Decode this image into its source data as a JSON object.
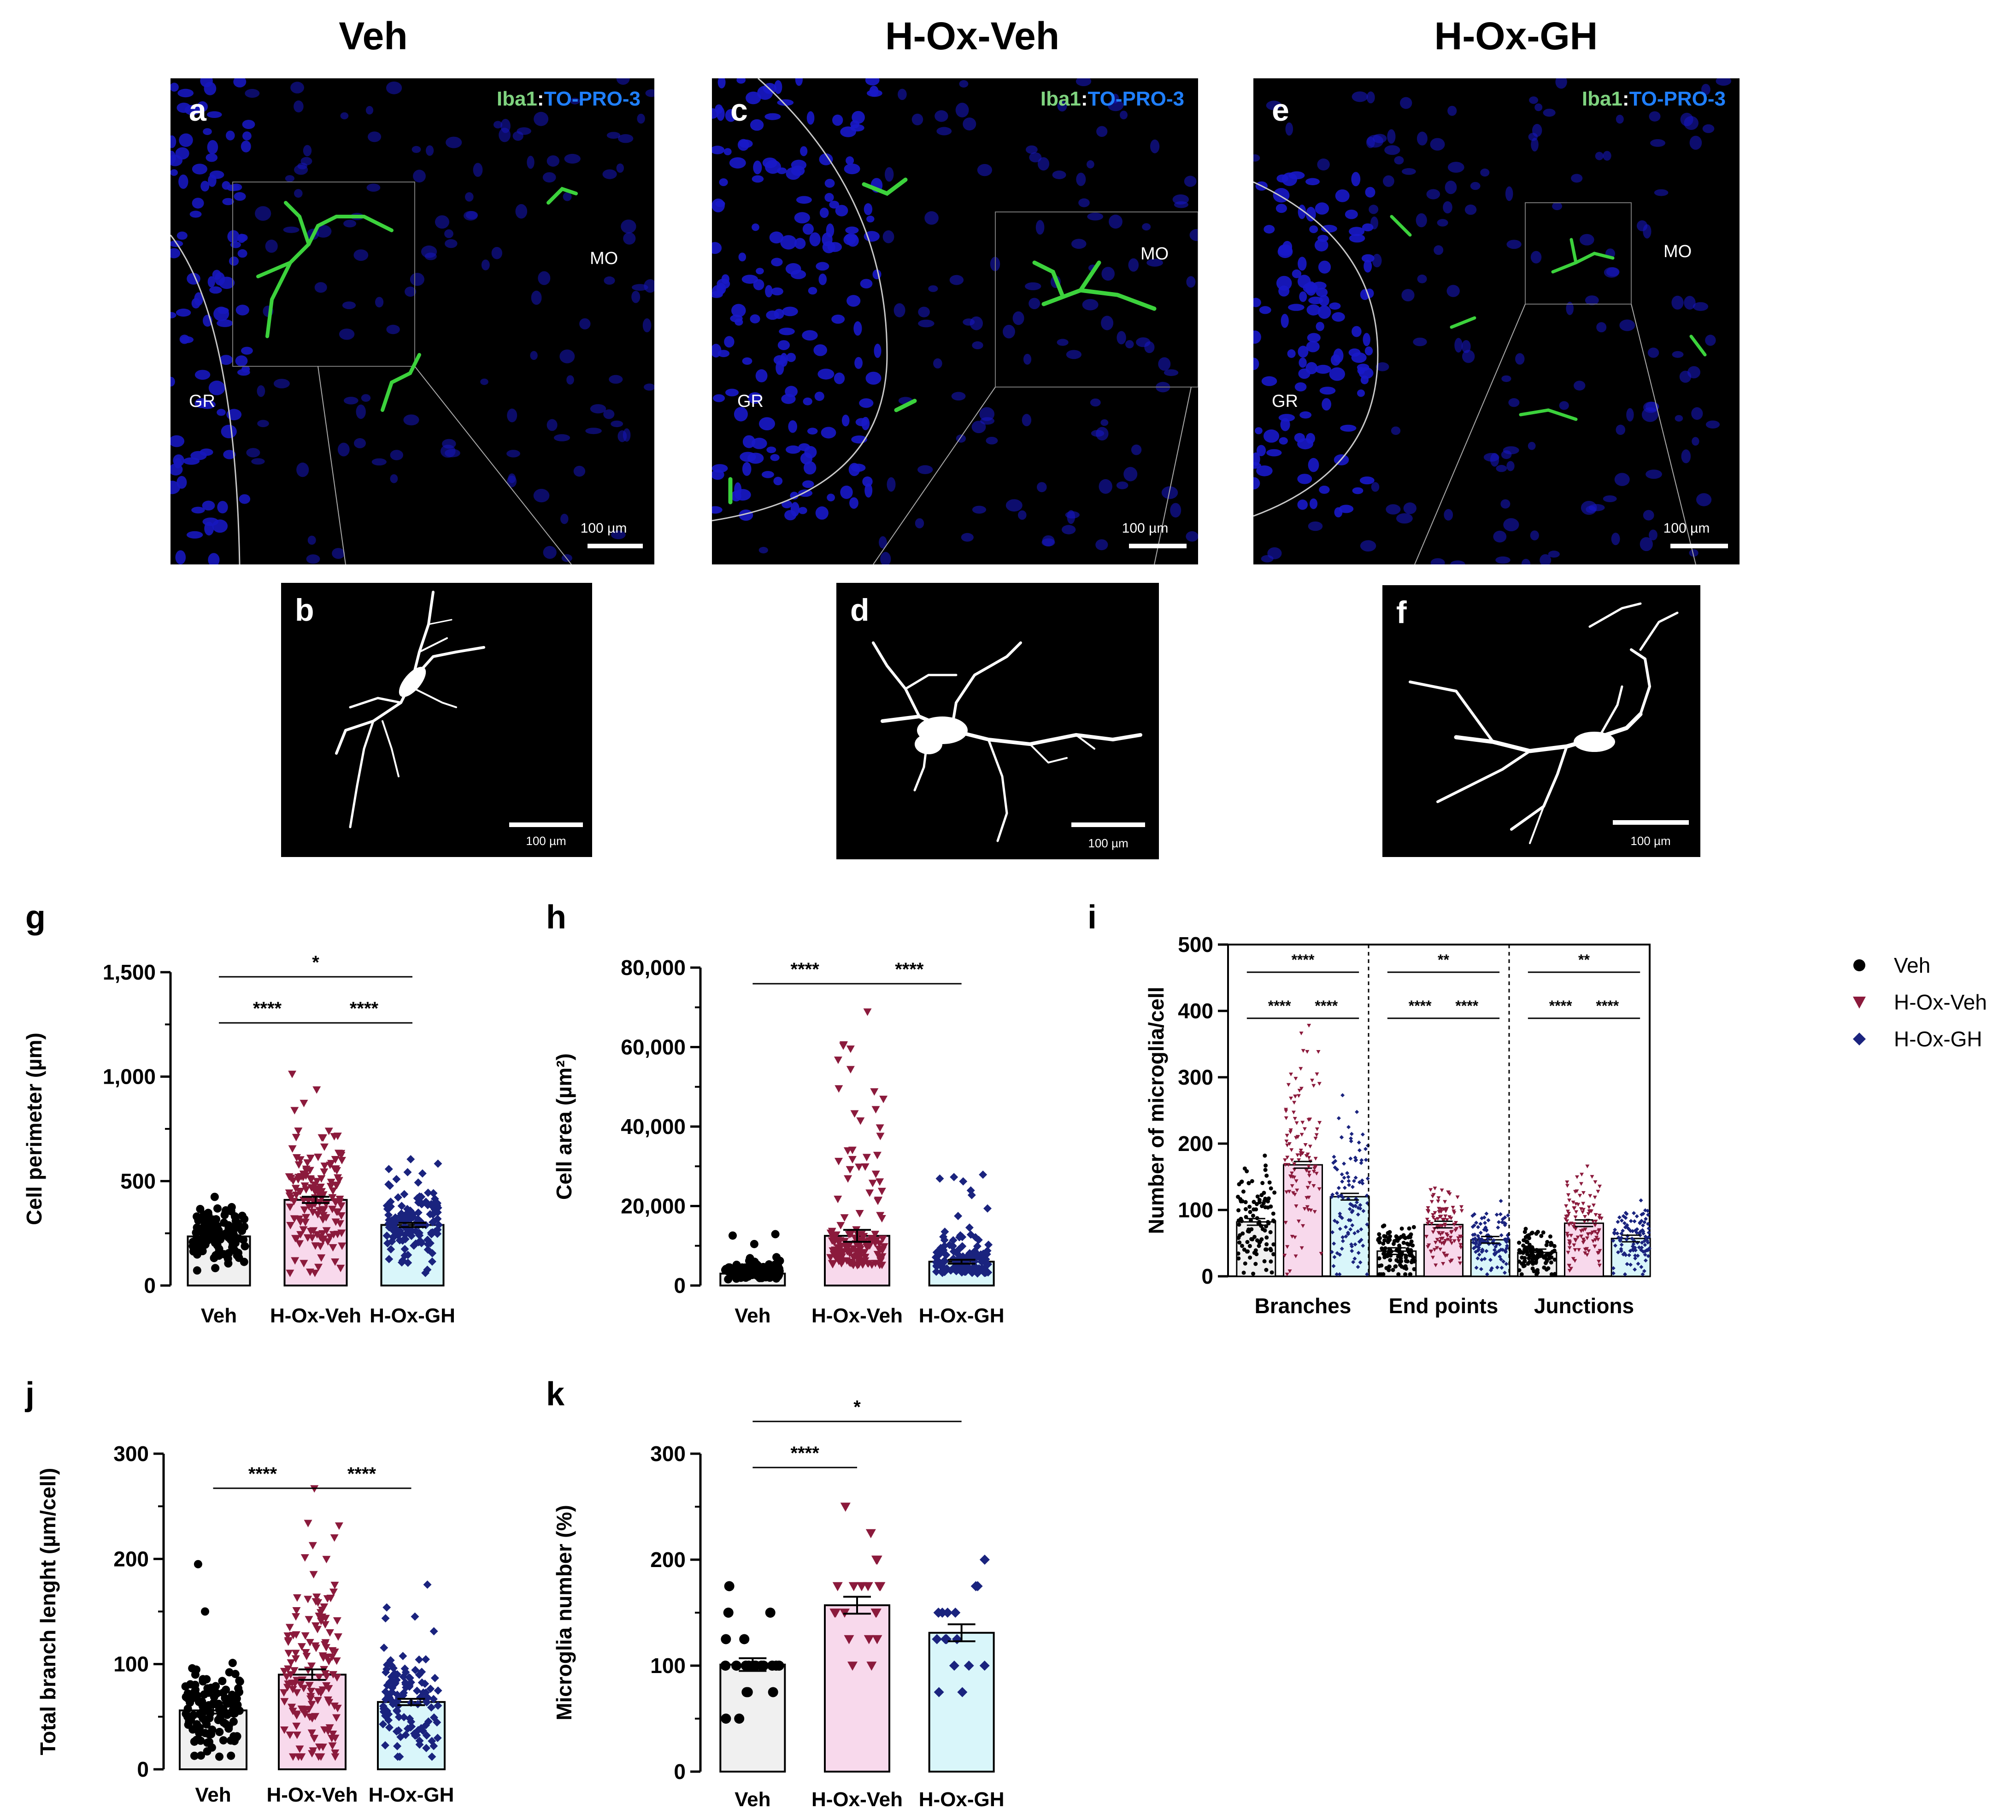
{
  "columns": [
    "Veh",
    "H-Ox-Veh",
    "H-Ox-GH"
  ],
  "panel_letters": {
    "a": "a",
    "b": "b",
    "c": "c",
    "d": "d",
    "e": "e",
    "f": "f",
    "g": "g",
    "h": "h",
    "i": "i",
    "j": "j",
    "k": "k"
  },
  "channel_label": {
    "green": "Iba1",
    "sep": ":",
    "blue": "TO-PRO-3"
  },
  "regions": {
    "mo": "MO",
    "gr": "GR"
  },
  "scale_label": "100 µm",
  "colors": {
    "veh": "#000000",
    "hoxveh": "#8b1a3c",
    "hoxgh": "#1a237e",
    "veh_bar": "#f0f0f0",
    "hoxveh_bar": "#f8d9ec",
    "hoxgh_bar": "#d9f6fa",
    "green": "#3cd23c",
    "blue": "#1a1aff"
  },
  "legend": [
    "Veh",
    "H-Ox-Veh",
    "H-Ox-GH"
  ],
  "chart_data": [
    {
      "id": "g",
      "type": "bar",
      "categories": [
        "Veh",
        "H-Ox-Veh",
        "H-Ox-GH"
      ],
      "values": [
        235,
        410,
        290
      ],
      "sem": [
        10,
        15,
        10
      ],
      "ylabel": "Cell perimeter (µm)",
      "ylim": [
        0,
        1500
      ],
      "ticks": [
        "0",
        "500",
        "1,000",
        "1,500"
      ],
      "tick_values": [
        0,
        500,
        1000,
        1500
      ],
      "signif": [
        {
          "from": 0,
          "to": 2,
          "label": "*"
        },
        {
          "from": 0,
          "to": 1,
          "label": "****"
        },
        {
          "from": 1,
          "to": 2,
          "label": "****"
        }
      ]
    },
    {
      "id": "h",
      "type": "bar",
      "categories": [
        "Veh",
        "H-Ox-Veh",
        "H-Ox-GH"
      ],
      "values": [
        3000,
        12500,
        6000
      ],
      "sem": [
        300,
        1500,
        500
      ],
      "ylabel": "Cell area (µm²)",
      "ylim": [
        0,
        80000
      ],
      "ticks": [
        "0",
        "20,000",
        "40,000",
        "60,000",
        "80,000"
      ],
      "tick_values": [
        0,
        20000,
        40000,
        60000,
        80000
      ],
      "signif": [
        {
          "from": 0,
          "to": 1,
          "label": "****"
        },
        {
          "from": 1,
          "to": 2,
          "label": "****"
        }
      ]
    },
    {
      "id": "i",
      "type": "bar",
      "groups": [
        "Branches",
        "End points",
        "Junctions"
      ],
      "series": [
        {
          "name": "Veh",
          "values": [
            82,
            38,
            36
          ]
        },
        {
          "name": "H-Ox-Veh",
          "values": [
            168,
            78,
            80
          ]
        },
        {
          "name": "H-Ox-GH",
          "values": [
            120,
            55,
            57
          ]
        }
      ],
      "ylabel": "Number of microglia/cell",
      "ylim": [
        0,
        500
      ],
      "ticks": [
        "0",
        "100",
        "200",
        "300",
        "400",
        "500"
      ],
      "tick_values": [
        0,
        100,
        200,
        300,
        400,
        500
      ],
      "signif": [
        {
          "group": 0,
          "from": 0,
          "to": 2,
          "label": "****"
        },
        {
          "group": 0,
          "from": 0,
          "to": 1,
          "label": "****"
        },
        {
          "group": 0,
          "from": 1,
          "to": 2,
          "label": "****"
        },
        {
          "group": 1,
          "from": 0,
          "to": 2,
          "label": "**"
        },
        {
          "group": 1,
          "from": 0,
          "to": 1,
          "label": "****"
        },
        {
          "group": 1,
          "from": 1,
          "to": 2,
          "label": "****"
        },
        {
          "group": 2,
          "from": 0,
          "to": 2,
          "label": "**"
        },
        {
          "group": 2,
          "from": 0,
          "to": 1,
          "label": "****"
        },
        {
          "group": 2,
          "from": 1,
          "to": 2,
          "label": "****"
        }
      ]
    },
    {
      "id": "j",
      "type": "bar",
      "categories": [
        "Veh",
        "H-Ox-Veh",
        "H-Ox-GH"
      ],
      "values": [
        56,
        90,
        64
      ],
      "sem": [
        3,
        5,
        3
      ],
      "ylabel": "Total branch lenght  (µm/cell)",
      "ylim": [
        0,
        300
      ],
      "ticks": [
        "0",
        "100",
        "200",
        "300"
      ],
      "tick_values": [
        0,
        100,
        200,
        300
      ],
      "signif": [
        {
          "from": 0,
          "to": 1,
          "label": "****"
        },
        {
          "from": 1,
          "to": 2,
          "label": "****"
        }
      ]
    },
    {
      "id": "k",
      "type": "bar",
      "categories": [
        "Veh",
        "H-Ox-Veh",
        "H-Ox-GH"
      ],
      "values": [
        101,
        157,
        131
      ],
      "sem": [
        6,
        8,
        8
      ],
      "ylabel": "Microglia number (%)",
      "ylim": [
        0,
        300
      ],
      "ticks": [
        "0",
        "100",
        "200",
        "300"
      ],
      "tick_values": [
        0,
        100,
        200,
        300
      ],
      "signif": [
        {
          "from": 0,
          "to": 2,
          "label": "*"
        },
        {
          "from": 0,
          "to": 1,
          "label": "****"
        }
      ],
      "points": [
        [
          175,
          150,
          150,
          125,
          125,
          100,
          100,
          100,
          100,
          100,
          100,
          100,
          100,
          100,
          75,
          75,
          75,
          50,
          50,
          100,
          100,
          100
        ],
        [
          250,
          225,
          200,
          200,
          175,
          175,
          175,
          175,
          150,
          150,
          150,
          150,
          150,
          125,
          125,
          125,
          100,
          100,
          175,
          175
        ],
        [
          200,
          175,
          175,
          150,
          150,
          150,
          150,
          125,
          125,
          125,
          125,
          100,
          100,
          100,
          75,
          75
        ]
      ]
    }
  ]
}
